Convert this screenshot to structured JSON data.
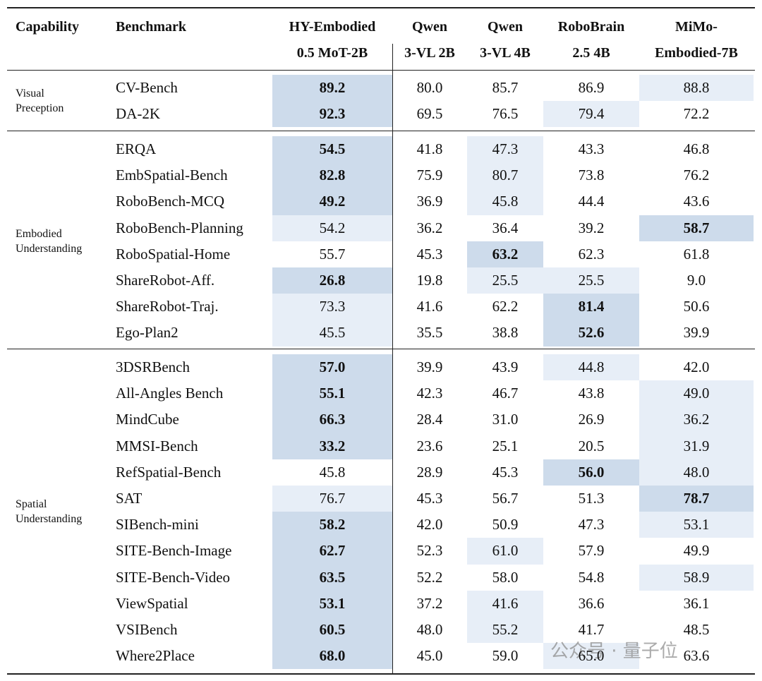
{
  "table": {
    "headers": [
      [
        "Capability"
      ],
      [
        "Benchmark"
      ],
      [
        "HY-Embodied",
        "0.5 MoT-2B"
      ],
      [
        "Qwen",
        "3-VL 2B"
      ],
      [
        "Qwen",
        "3-VL 4B"
      ],
      [
        "RoboBrain",
        "2.5 4B"
      ],
      [
        "MiMo-",
        "Embodied-7B"
      ]
    ],
    "colors": {
      "best": "#cddbeb",
      "second": "#e7eef7"
    },
    "groups": [
      {
        "capability": [
          "Visual",
          "Preception"
        ],
        "rows": [
          {
            "benchmark": "CV-Bench",
            "values": [
              "89.2",
              "80.0",
              "85.7",
              "86.9",
              "88.8"
            ],
            "shade": [
              "best",
              null,
              null,
              null,
              "second"
            ]
          },
          {
            "benchmark": "DA-2K",
            "values": [
              "92.3",
              "69.5",
              "76.5",
              "79.4",
              "72.2"
            ],
            "shade": [
              "best",
              null,
              null,
              "second",
              null
            ]
          }
        ]
      },
      {
        "capability": [
          "Embodied",
          "Understanding"
        ],
        "rows": [
          {
            "benchmark": "ERQA",
            "values": [
              "54.5",
              "41.8",
              "47.3",
              "43.3",
              "46.8"
            ],
            "shade": [
              "best",
              null,
              "second",
              null,
              null
            ]
          },
          {
            "benchmark": "EmbSpatial-Bench",
            "values": [
              "82.8",
              "75.9",
              "80.7",
              "73.8",
              "76.2"
            ],
            "shade": [
              "best",
              null,
              "second",
              null,
              null
            ]
          },
          {
            "benchmark": "RoboBench-MCQ",
            "values": [
              "49.2",
              "36.9",
              "45.8",
              "44.4",
              "43.6"
            ],
            "shade": [
              "best",
              null,
              "second",
              null,
              null
            ]
          },
          {
            "benchmark": "RoboBench-Planning",
            "values": [
              "54.2",
              "36.2",
              "36.4",
              "39.2",
              "58.7"
            ],
            "shade": [
              "second",
              null,
              null,
              null,
              "best"
            ]
          },
          {
            "benchmark": "RoboSpatial-Home",
            "values": [
              "55.7",
              "45.3",
              "63.2",
              "62.3",
              "61.8"
            ],
            "shade": [
              null,
              null,
              "best",
              null,
              null
            ]
          },
          {
            "benchmark": "ShareRobot-Aff.",
            "values": [
              "26.8",
              "19.8",
              "25.5",
              "25.5",
              "9.0"
            ],
            "shade": [
              "best",
              null,
              "second",
              "second",
              null
            ]
          },
          {
            "benchmark": "ShareRobot-Traj.",
            "values": [
              "73.3",
              "41.6",
              "62.2",
              "81.4",
              "50.6"
            ],
            "shade": [
              "second",
              null,
              null,
              "best",
              null
            ]
          },
          {
            "benchmark": "Ego-Plan2",
            "values": [
              "45.5",
              "35.5",
              "38.8",
              "52.6",
              "39.9"
            ],
            "shade": [
              "second",
              null,
              null,
              "best",
              null
            ]
          }
        ]
      },
      {
        "capability": [
          "Spatial",
          "Understanding"
        ],
        "rows": [
          {
            "benchmark": "3DSRBench",
            "values": [
              "57.0",
              "39.9",
              "43.9",
              "44.8",
              "42.0"
            ],
            "shade": [
              "best",
              null,
              null,
              "second",
              null
            ]
          },
          {
            "benchmark": "All-Angles Bench",
            "values": [
              "55.1",
              "42.3",
              "46.7",
              "43.8",
              "49.0"
            ],
            "shade": [
              "best",
              null,
              null,
              null,
              "second"
            ]
          },
          {
            "benchmark": "MindCube",
            "values": [
              "66.3",
              "28.4",
              "31.0",
              "26.9",
              "36.2"
            ],
            "shade": [
              "best",
              null,
              null,
              null,
              "second"
            ]
          },
          {
            "benchmark": "MMSI-Bench",
            "values": [
              "33.2",
              "23.6",
              "25.1",
              "20.5",
              "31.9"
            ],
            "shade": [
              "best",
              null,
              null,
              null,
              "second"
            ]
          },
          {
            "benchmark": "RefSpatial-Bench",
            "values": [
              "45.8",
              "28.9",
              "45.3",
              "56.0",
              "48.0"
            ],
            "shade": [
              null,
              null,
              null,
              "best",
              "second"
            ]
          },
          {
            "benchmark": "SAT",
            "values": [
              "76.7",
              "45.3",
              "56.7",
              "51.3",
              "78.7"
            ],
            "shade": [
              "second",
              null,
              null,
              null,
              "best"
            ]
          },
          {
            "benchmark": "SIBench-mini",
            "values": [
              "58.2",
              "42.0",
              "50.9",
              "47.3",
              "53.1"
            ],
            "shade": [
              "best",
              null,
              null,
              null,
              "second"
            ]
          },
          {
            "benchmark": "SITE-Bench-Image",
            "values": [
              "62.7",
              "52.3",
              "61.0",
              "57.9",
              "49.9"
            ],
            "shade": [
              "best",
              null,
              "second",
              null,
              null
            ]
          },
          {
            "benchmark": "SITE-Bench-Video",
            "values": [
              "63.5",
              "52.2",
              "58.0",
              "54.8",
              "58.9"
            ],
            "shade": [
              "best",
              null,
              null,
              null,
              "second"
            ]
          },
          {
            "benchmark": "ViewSpatial",
            "values": [
              "53.1",
              "37.2",
              "41.6",
              "36.6",
              "36.1"
            ],
            "shade": [
              "best",
              null,
              "second",
              null,
              null
            ]
          },
          {
            "benchmark": "VSIBench",
            "values": [
              "60.5",
              "48.0",
              "55.2",
              "41.7",
              "48.5"
            ],
            "shade": [
              "best",
              null,
              "second",
              null,
              null
            ]
          },
          {
            "benchmark": "Where2Place",
            "values": [
              "68.0",
              "45.0",
              "59.0",
              "65.0",
              "63.6"
            ],
            "shade": [
              "best",
              null,
              null,
              "second",
              null
            ]
          }
        ]
      }
    ]
  },
  "watermark": "公众号 · 量子位"
}
